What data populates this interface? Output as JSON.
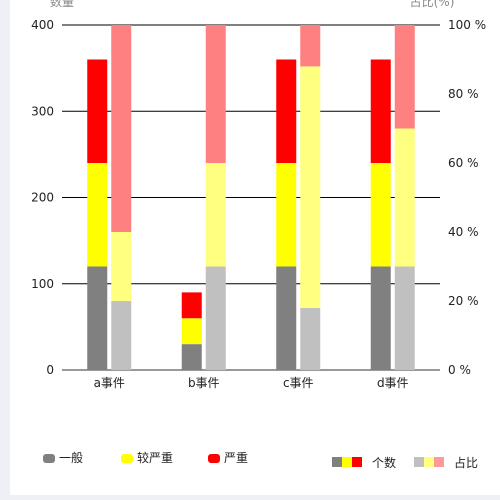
{
  "chart_data": {
    "type": "bar",
    "categories": [
      "a事件",
      "b事件",
      "c事件",
      "d事件"
    ],
    "y_left": {
      "name": "数量",
      "min": 0,
      "max": 400,
      "ticks": [
        "0",
        "100",
        "200",
        "300",
        "400"
      ]
    },
    "y_right": {
      "name": "占比(%)",
      "min": 0,
      "max": 100,
      "ticks": [
        "0 %",
        "20 %",
        "40 %",
        "60 %",
        "80 %",
        "100 %"
      ]
    },
    "count_series": [
      {
        "name": "一般",
        "color": "#808080",
        "values": [
          120,
          30,
          120,
          120
        ]
      },
      {
        "name": "较严重",
        "color": "#ffff00",
        "values": [
          120,
          30,
          120,
          120
        ]
      },
      {
        "name": "严重",
        "color": "#ff0000",
        "values": [
          120,
          30,
          120,
          120
        ]
      }
    ],
    "percent_series": [
      {
        "name": "一般",
        "color": "#c0c0c0",
        "values": [
          20,
          30,
          18,
          30
        ]
      },
      {
        "name": "较严重",
        "color": "#ffff80",
        "values": [
          20,
          30,
          70,
          40
        ]
      },
      {
        "name": "严重",
        "color": "#ff8080",
        "values": [
          60,
          40,
          12,
          30
        ]
      }
    ],
    "grid": true,
    "legend": {
      "position": "bottom",
      "items": [
        {
          "label": "一般",
          "color": "#808080",
          "icon": "rounded-rect"
        },
        {
          "label": "较严重",
          "color": "#ffff00",
          "icon": "rounded-rect"
        },
        {
          "label": "严重",
          "color": "#ff0000",
          "icon": "rounded-rect"
        }
      ],
      "group_items": [
        {
          "label": "个数",
          "colors": [
            "#808080",
            "#ffff00",
            "#ff0000"
          ]
        },
        {
          "label": "占比",
          "colors": [
            "#c0c0c0",
            "#ffff80",
            "#ff9999"
          ]
        }
      ]
    }
  }
}
